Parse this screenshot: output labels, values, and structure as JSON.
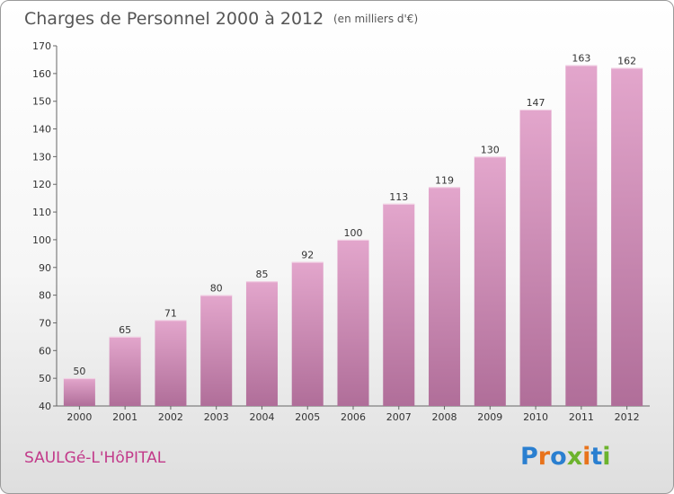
{
  "chart_data": {
    "type": "bar",
    "title": "Charges de Personnel 2000 à 2012",
    "subtitle": "(en milliers d'€)",
    "categories": [
      "2000",
      "2001",
      "2002",
      "2003",
      "2004",
      "2005",
      "2006",
      "2007",
      "2008",
      "2009",
      "2010",
      "2011",
      "2012"
    ],
    "values": [
      50,
      65,
      71,
      80,
      85,
      92,
      100,
      113,
      119,
      130,
      147,
      163,
      162
    ],
    "ylim": [
      40,
      170
    ],
    "yticks": [
      40,
      50,
      60,
      70,
      80,
      90,
      100,
      110,
      120,
      130,
      140,
      150,
      160,
      170
    ],
    "xlabel": "",
    "ylabel": "",
    "grid": false,
    "bar_color": "#d98cba"
  },
  "commune": "SAULGé-L'HôPITAL",
  "logo": {
    "text": "Proxiti",
    "letters": [
      {
        "ch": "P",
        "color": "#2a7fd0"
      },
      {
        "ch": "r",
        "color": "#e8731c"
      },
      {
        "ch": "o",
        "color": "#2a7fd0"
      },
      {
        "ch": "x",
        "color": "#6cb32d"
      },
      {
        "ch": "i",
        "color": "#e8731c"
      },
      {
        "ch": "t",
        "color": "#2a7fd0"
      },
      {
        "ch": "i",
        "color": "#6cb32d"
      }
    ]
  }
}
